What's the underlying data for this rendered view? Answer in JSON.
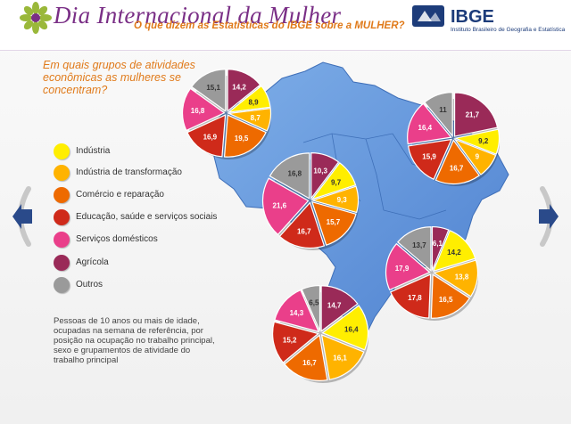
{
  "header": {
    "title": "Dia Internacional da Mulher",
    "subtitle": "O que dizem as Estatísticas do IBGE sobre a MULHER?",
    "logo_text": "IBGE",
    "logo_subtitle": "Instituto Brasileiro de Geografia e Estatística"
  },
  "question": "Em quais grupos de atividades econômicas as mulheres se concentram?",
  "legend": [
    {
      "label": "Indústria",
      "color": "#ffee00"
    },
    {
      "label": "Indústria de transformação",
      "color": "#ffb300"
    },
    {
      "label": "Comércio e reparação",
      "color": "#ee6a00"
    },
    {
      "label": "Educação, saúde e serviços sociais",
      "color": "#cf2a1a"
    },
    {
      "label": "Serviços domésticos",
      "color": "#ea3f8a"
    },
    {
      "label": "Agrícola",
      "color": "#9a2a58"
    },
    {
      "label": "Outros",
      "color": "#9a9a9a"
    }
  ],
  "note": "Pessoas de 10 anos ou mais de idade, ocupadas na semana de referência, por posição na ocupação no trabalho principal, sexo e grupamentos de atividade do trabalho principal",
  "chart_data": [
    {
      "type": "pie",
      "categories": [
        "Indústria",
        "Indústria de transformação",
        "Comércio e reparação",
        "Educação, saúde e serviços sociais",
        "Serviços domésticos",
        "Agrícola",
        "Outros"
      ],
      "values": [
        8.9,
        8.7,
        19.5,
        16.9,
        16.8,
        14.2,
        15.1
      ]
    },
    {
      "type": "pie",
      "categories": [
        "Indústria",
        "Indústria de transformação",
        "Comércio e reparação",
        "Educação, saúde e serviços sociais",
        "Serviços domésticos",
        "Agrícola",
        "Outros"
      ],
      "values": [
        9.2,
        9,
        16.7,
        15.9,
        16.4,
        21.7,
        11
      ]
    },
    {
      "type": "pie",
      "categories": [
        "Indústria",
        "Indústria de transformação",
        "Comércio e reparação",
        "Educação, saúde e serviços sociais",
        "Serviços domésticos",
        "Agrícola",
        "Outros"
      ],
      "values": [
        9.7,
        9.3,
        15.7,
        16.7,
        21.6,
        10.3,
        16.8
      ]
    },
    {
      "type": "pie",
      "categories": [
        "Indústria",
        "Indústria de transformação",
        "Comércio e reparação",
        "Educação, saúde e serviços sociais",
        "Serviços domésticos",
        "Agrícola",
        "Outros"
      ],
      "values": [
        14.2,
        13.8,
        16.5,
        17.8,
        17.9,
        6.1,
        13.7
      ]
    },
    {
      "type": "pie",
      "categories": [
        "Indústria",
        "Indústria de transformação",
        "Comércio e reparação",
        "Educação, saúde e serviços sociais",
        "Serviços domésticos",
        "Agrícola",
        "Outros"
      ],
      "values": [
        16.4,
        16.1,
        16.7,
        15.2,
        14.3,
        14.7,
        6.5
      ]
    }
  ]
}
